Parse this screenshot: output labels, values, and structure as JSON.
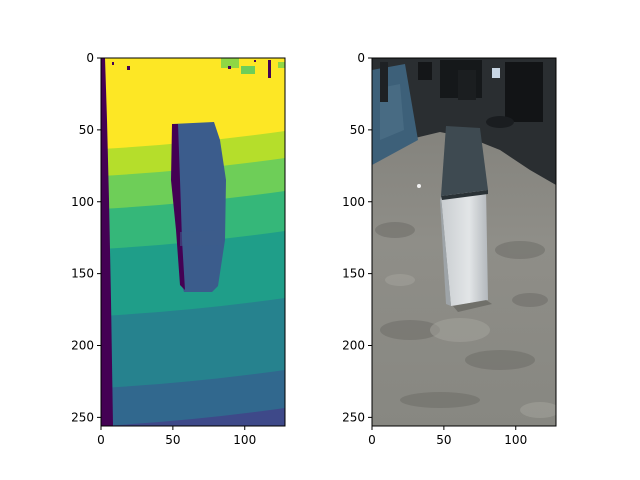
{
  "figure": {
    "panels": [
      {
        "name": "depth-map",
        "colormap": "viridis",
        "axis": {
          "xlim": [
            0,
            128
          ],
          "ylim": [
            256,
            0
          ],
          "x_ticks": [
            0,
            50,
            100
          ],
          "y_ticks": [
            0,
            50,
            100,
            150,
            200,
            250
          ]
        },
        "colors": {
          "far_band": "#fde725",
          "band_1": "#b5de2b",
          "band_2": "#6ece58",
          "band_3": "#35b779",
          "band_4": "#1f9e89",
          "band_5": "#26828e",
          "band_6": "#31688e",
          "band_7": "#3e4989",
          "invalid": "#440154",
          "object": "#3b5c8c"
        }
      },
      {
        "name": "rgb-image",
        "axis": {
          "xlim": [
            0,
            128
          ],
          "ylim": [
            256,
            0
          ],
          "x_ticks": [
            0,
            50,
            100
          ],
          "y_ticks": [
            0,
            50,
            100,
            150,
            200,
            250
          ]
        },
        "colors": {
          "floor": "#8e8d86",
          "floor_dark": "#6e6d68",
          "background": "#24282c",
          "carpet": "#3a5c74",
          "box_top": "#3f4a50",
          "box_side": "#d9dde0",
          "box_shade": "#b9bec2"
        }
      }
    ]
  }
}
